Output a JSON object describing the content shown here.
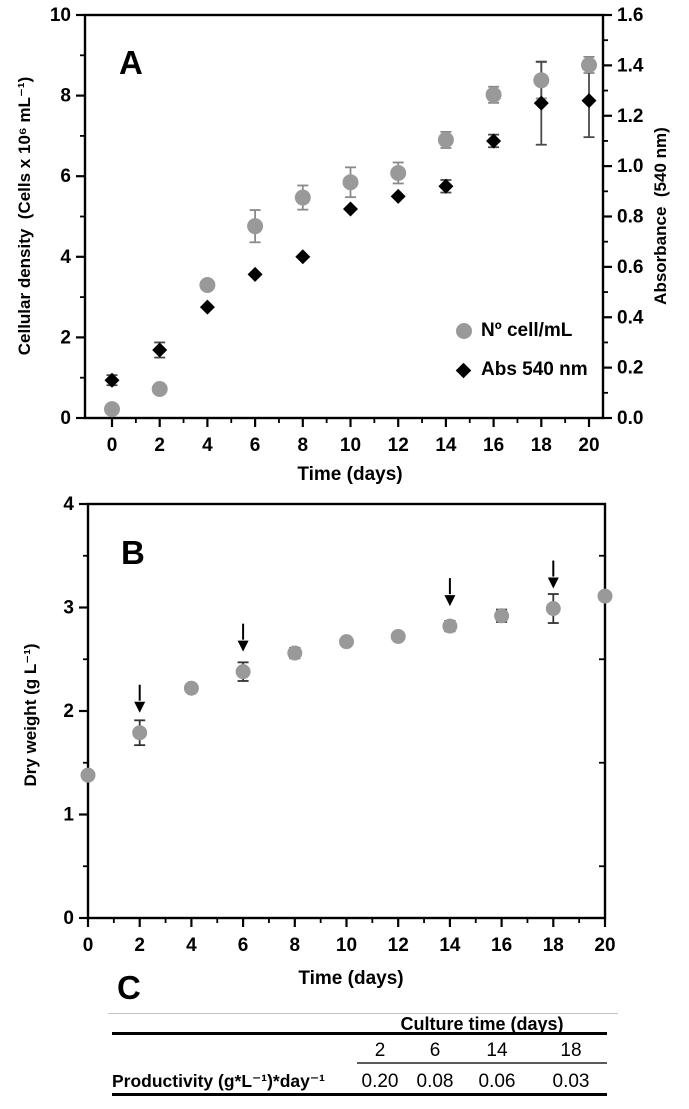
{
  "figure": {
    "panels": {
      "a": "A",
      "b": "B",
      "c": "C"
    },
    "background": "#ffffff",
    "colors": {
      "marker_gray": "#999999",
      "marker_black": "#000000",
      "error_gray": "#8a8a8a",
      "error_dark": "#4a4a4a",
      "axis": "#000000"
    }
  },
  "chart_data": [
    {
      "id": "panel-a",
      "type": "scatter",
      "panel_label": "A",
      "xlabel": "Time (days)",
      "x": [
        0,
        2,
        4,
        6,
        8,
        10,
        12,
        14,
        16,
        18,
        20
      ],
      "xtick_labels": [
        "0",
        "2",
        "4",
        "6",
        "8",
        "10",
        "12",
        "14",
        "16",
        "18",
        "20"
      ],
      "xlim": [
        -1.1,
        20.6
      ],
      "left_axis": {
        "label": "Cellular density  (Cells x 10⁶ mL⁻¹)",
        "lim": [
          0,
          10
        ],
        "ticks": [
          0,
          2,
          4,
          6,
          8,
          10
        ],
        "minor_ticks": [
          1,
          3,
          5,
          7,
          9
        ]
      },
      "right_axis": {
        "label": "Absorbance  (540 nm)",
        "lim": [
          0,
          1.6
        ],
        "ticks": [
          0.0,
          0.2,
          0.4,
          0.6,
          0.8,
          1.0,
          1.2,
          1.4,
          1.6
        ],
        "tick_labels": [
          "0.0",
          "0.2",
          "0.4",
          "0.6",
          "0.8",
          "1.0",
          "1.2",
          "1.4",
          "1.6"
        ],
        "minor_ticks": [
          0.1,
          0.3,
          0.5,
          0.7,
          0.9,
          1.1,
          1.3,
          1.5
        ]
      },
      "series": [
        {
          "name": "Nº cell/mL",
          "marker": "circle",
          "color": "#999999",
          "error_color": "#8a8a8a",
          "axis": "left",
          "values": [
            0.22,
            0.72,
            3.3,
            4.76,
            5.47,
            5.85,
            6.08,
            6.9,
            8.02,
            8.38,
            8.76
          ],
          "errors": [
            0.05,
            0.06,
            0.06,
            0.4,
            0.3,
            0.37,
            0.26,
            0.2,
            0.2,
            0.45,
            0.2
          ]
        },
        {
          "name": "Abs 540 nm",
          "marker": "diamond",
          "color": "#000000",
          "error_color": "#4a4a4a",
          "axis": "right",
          "values": [
            0.15,
            0.27,
            0.44,
            0.57,
            0.64,
            0.83,
            0.88,
            0.92,
            1.1,
            1.25,
            1.26
          ],
          "errors": [
            0.02,
            0.03,
            0.006,
            0.006,
            0.008,
            0.008,
            0.008,
            0.025,
            0.025,
            0.165,
            0.145
          ]
        }
      ],
      "legend": {
        "position": "inside-right",
        "entries": [
          "Nº cell/mL",
          "Abs 540 nm"
        ]
      },
      "grid": false
    },
    {
      "id": "panel-b",
      "type": "scatter",
      "panel_label": "B",
      "xlabel": "Time (days)",
      "x": [
        0,
        2,
        4,
        6,
        8,
        10,
        12,
        14,
        16,
        18,
        20
      ],
      "xtick_labels": [
        "0",
        "2",
        "4",
        "6",
        "8",
        "10",
        "12",
        "14",
        "16",
        "18",
        "20"
      ],
      "xlim": [
        0,
        20
      ],
      "y_axis": {
        "label": "Dry weight (g L⁻¹)",
        "lim": [
          0,
          4
        ],
        "ticks": [
          0,
          1,
          2,
          3,
          4
        ],
        "minor_ticks": [
          0.5,
          1.5,
          2.5,
          3.5
        ]
      },
      "series": [
        {
          "name": "Dry weight",
          "marker": "circle",
          "color": "#999999",
          "error_color": "#333333",
          "values": [
            1.38,
            1.79,
            2.22,
            2.38,
            2.56,
            2.67,
            2.72,
            2.82,
            2.92,
            2.99,
            3.11
          ],
          "errors": [
            0.02,
            0.12,
            0.02,
            0.09,
            0.05,
            0.02,
            0.02,
            0.05,
            0.06,
            0.14,
            0.03
          ]
        }
      ],
      "arrow_days": [
        2,
        6,
        14,
        18
      ],
      "grid": false
    }
  ],
  "table": {
    "panel_label": "C",
    "spanner": "Culture time (days)",
    "columns": [
      "2",
      "6",
      "14",
      "18"
    ],
    "rows": [
      {
        "label": "Productivity (g*L⁻¹)*day⁻¹",
        "values": [
          "0.20",
          "0.08",
          "0.06",
          "0.03"
        ]
      }
    ]
  }
}
